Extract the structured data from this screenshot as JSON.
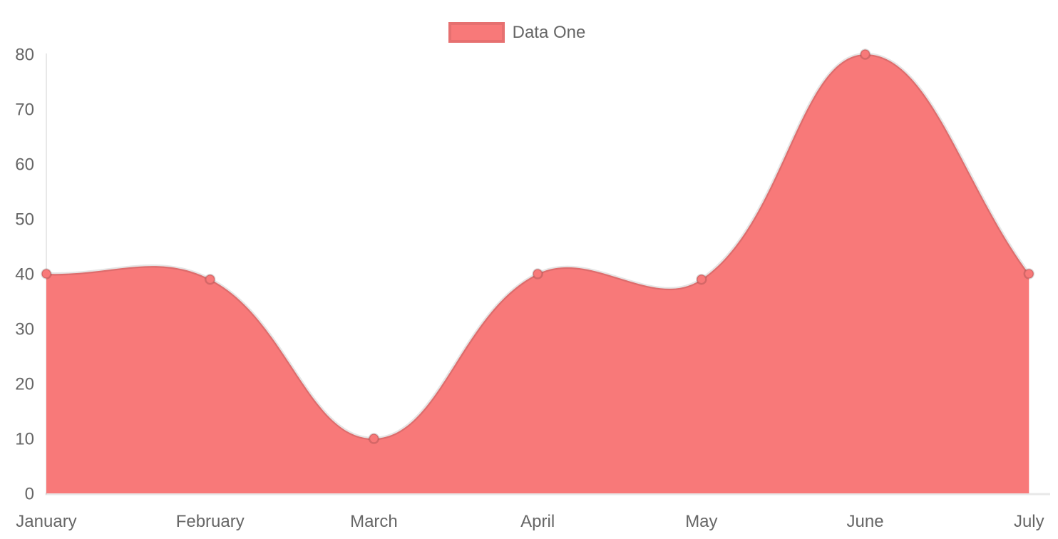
{
  "legend": {
    "items": [
      {
        "label": "Data One",
        "color": "#f87979"
      }
    ]
  },
  "chart_data": {
    "type": "area",
    "title": "",
    "categories": [
      "January",
      "February",
      "March",
      "April",
      "May",
      "June",
      "July"
    ],
    "series": [
      {
        "name": "Data One",
        "values": [
          40,
          39,
          10,
          40,
          39,
          80,
          40
        ]
      }
    ],
    "xlabel": "",
    "ylabel": "",
    "ylim": [
      0,
      80
    ],
    "y_ticks": [
      0,
      10,
      20,
      30,
      40,
      50,
      60,
      70,
      80
    ],
    "grid": false,
    "legend_position": "top",
    "line_tension": 0.4,
    "colors": {
      "fill": "#f87979",
      "line": "rgba(0,0,0,0.10)",
      "point_fill": "#f87979",
      "point_border": "rgba(0,0,0,0.14)",
      "axis_line": "rgba(0,0,0,0.09)",
      "tick_label": "#666666"
    }
  }
}
